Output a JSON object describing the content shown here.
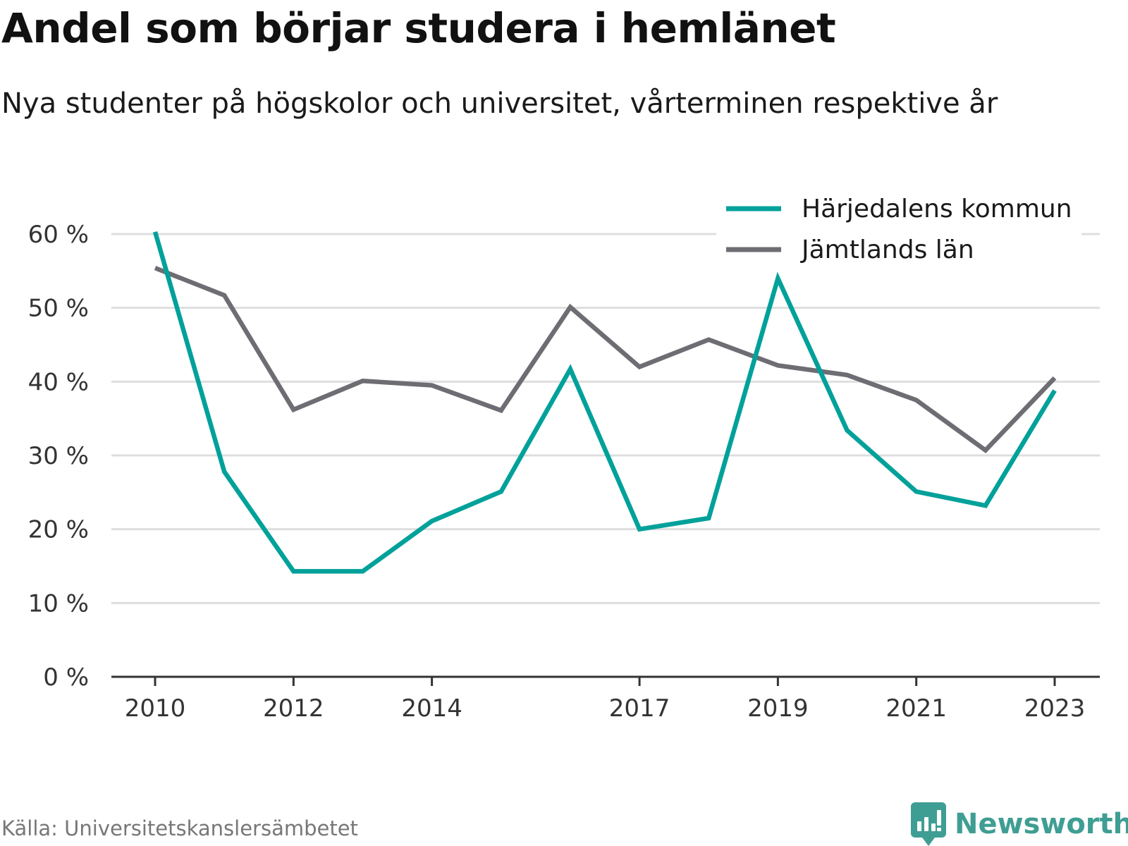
{
  "header": {
    "title": "Andel som börjar studera i hemlänet",
    "subtitle": "Nya studenter på högskolor och universitet, vårterminen respektive år"
  },
  "footer": {
    "source": "Källa: Universitetskanslersämbetet",
    "brand": "Newsworthy",
    "brand_icon": "newsworthy-logo-icon",
    "brand_color": "#3f9e93"
  },
  "chart_data": {
    "type": "line",
    "x": [
      2010,
      2011,
      2012,
      2013,
      2014,
      2015,
      2016,
      2017,
      2018,
      2019,
      2020,
      2021,
      2022,
      2023
    ],
    "x_tick_labels": [
      "2010",
      "2012",
      "2014",
      "2017",
      "2019",
      "2021",
      "2023"
    ],
    "y_tick_labels": [
      "0 %",
      "10 %",
      "20 %",
      "30 %",
      "40 %",
      "50 %",
      "60 %"
    ],
    "ylim": [
      0,
      60
    ],
    "grid": true,
    "legend_position": "top-right",
    "series": [
      {
        "name": "Härjedalens kommun",
        "color": "#00a19a",
        "values": [
          60.3,
          27.8,
          14.3,
          14.3,
          21.1,
          25.1,
          41.7,
          20.0,
          21.5,
          54.0,
          33.4,
          25.1,
          23.2,
          38.8
        ]
      },
      {
        "name": "Jämtlands län",
        "color": "#6e6d73",
        "values": [
          55.4,
          51.7,
          36.2,
          40.1,
          39.5,
          36.1,
          50.1,
          42.0,
          45.7,
          42.2,
          40.9,
          37.5,
          30.7,
          40.5
        ]
      }
    ]
  }
}
